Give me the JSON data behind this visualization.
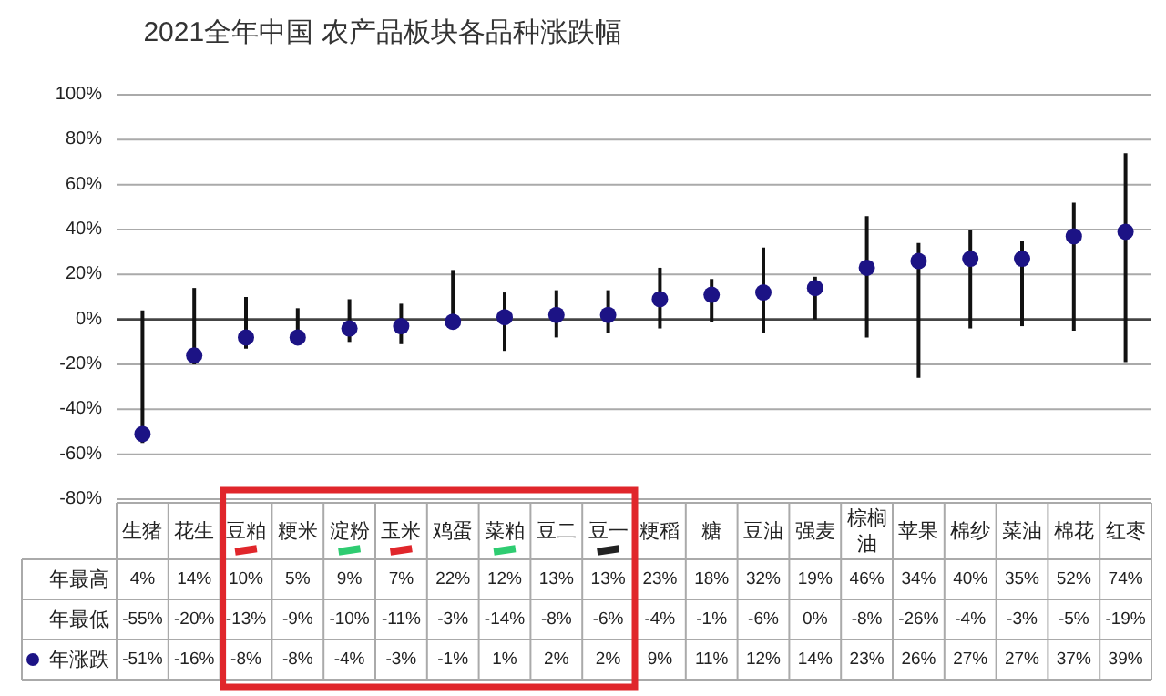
{
  "chart_data": {
    "type": "scatter",
    "title": "2021全年中国 农产品板块各品种涨跌幅",
    "categories": [
      "生猪",
      "花生",
      "豆粕",
      "粳米",
      "淀粉",
      "玉米",
      "鸡蛋",
      "菜粕",
      "豆二",
      "豆一",
      "粳稻",
      "糖",
      "豆油",
      "强麦",
      "棕榈油",
      "苹果",
      "棉纱",
      "菜油",
      "棉花",
      "红枣"
    ],
    "series": [
      {
        "name": "年涨跌",
        "color": "#1c1385",
        "values": [
          -51,
          -16,
          -8,
          -8,
          -4,
          -3,
          -1,
          1,
          2,
          2,
          9,
          11,
          12,
          14,
          23,
          26,
          27,
          27,
          37,
          39
        ],
        "errors": [
          [
            -55,
            4
          ],
          [
            -20,
            14
          ],
          [
            -13,
            10
          ],
          [
            -9,
            5
          ],
          [
            -10,
            9
          ],
          [
            -11,
            7
          ],
          [
            -3,
            22
          ],
          [
            -14,
            12
          ],
          [
            -8,
            13
          ],
          [
            -6,
            13
          ],
          [
            -4,
            23
          ],
          [
            -1,
            18
          ],
          [
            -6,
            32
          ],
          [
            0,
            19
          ],
          [
            -8,
            46
          ],
          [
            -26,
            34
          ],
          [
            -4,
            40
          ],
          [
            -3,
            35
          ],
          [
            -5,
            52
          ],
          [
            -19,
            74
          ]
        ],
        "value_labels": [
          "-51%",
          "-16%",
          "-8%",
          "-8%",
          "-4%",
          "-3%",
          "-1%",
          "1%",
          "2%",
          "2%",
          "9%",
          "11%",
          "12%",
          "14%",
          "23%",
          "26%",
          "27%",
          "27%",
          "37%",
          "39%"
        ]
      }
    ],
    "ylim": [
      -80,
      100
    ],
    "yticks": [
      {
        "value": -80,
        "label": "-80%"
      },
      {
        "value": -60,
        "label": "-60%"
      },
      {
        "value": -40,
        "label": "-40%"
      },
      {
        "value": -20,
        "label": "-20%"
      },
      {
        "value": 0,
        "label": "0%"
      },
      {
        "value": 20,
        "label": "20%"
      },
      {
        "value": 40,
        "label": "40%"
      },
      {
        "value": 60,
        "label": "60%"
      },
      {
        "value": 80,
        "label": "80%"
      },
      {
        "value": 100,
        "label": "100%"
      }
    ],
    "grid": "y",
    "marker": "circle",
    "legend": "bottom left",
    "annotations": [
      "年最高",
      "年最低",
      "4%",
      "14%",
      "10%",
      "5%",
      "9%",
      "7%",
      "22%",
      "12%",
      "13%",
      "13%",
      "23%",
      "18%",
      "32%",
      "19%",
      "46%",
      "34%",
      "40%",
      "35%",
      "52%",
      "74%",
      "-55%",
      "-20%",
      "-13%",
      "-9%",
      "-10%",
      "-11%",
      "-3%",
      "-14%",
      "-8%",
      "-6%",
      "-4%",
      "-1%",
      "-6%",
      "0%",
      "-8%",
      "-26%",
      "-4%",
      "-3%",
      "-5%",
      "-19%"
    ]
  }
}
